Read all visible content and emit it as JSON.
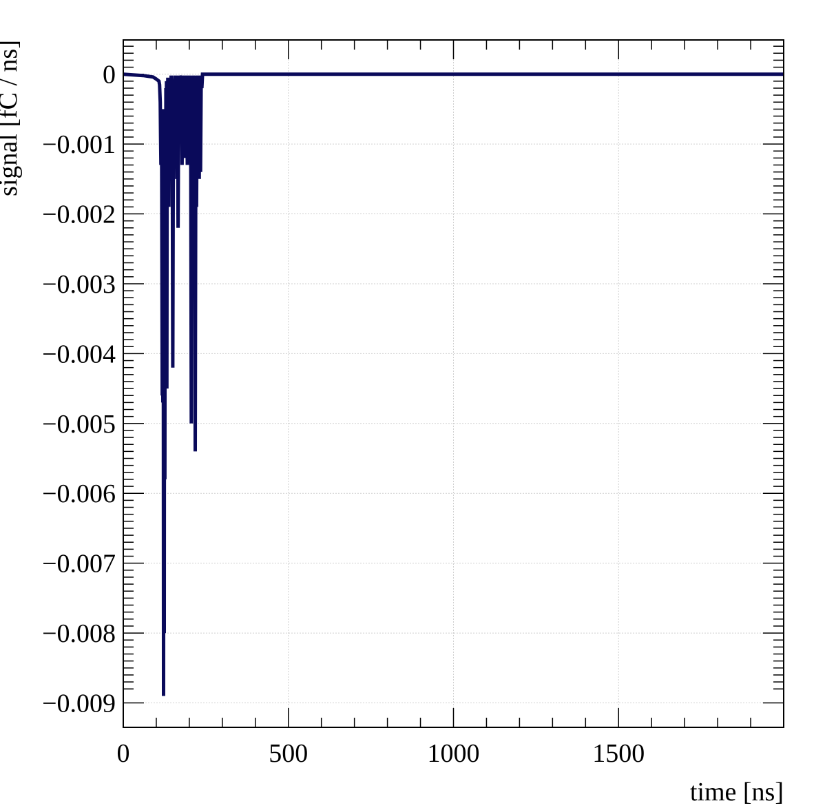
{
  "chart_data": {
    "type": "line",
    "title": "",
    "xlabel": "time [ns]",
    "ylabel": "signal [fC / ns]",
    "xlim": [
      0,
      2000
    ],
    "ylim": [
      -0.00935,
      0.00049
    ],
    "x_ticks": [
      0,
      500,
      1000,
      1500
    ],
    "x_tick_labels": [
      "0",
      "500",
      "1000",
      "1500"
    ],
    "y_ticks": [
      0,
      -0.001,
      -0.002,
      -0.003,
      -0.004,
      -0.005,
      -0.006,
      -0.007,
      -0.008,
      -0.009
    ],
    "y_tick_labels": [
      "0",
      "−0.001",
      "−0.002",
      "−0.003",
      "−0.004",
      "−0.005",
      "−0.006",
      "−0.007",
      "−0.008",
      "−0.009"
    ],
    "grid": true,
    "line_color": "#0a0a5a",
    "series": [
      {
        "x": [
          0,
          60,
          90,
          100,
          108,
          110,
          112,
          113,
          114,
          116,
          118,
          119,
          120,
          121,
          122,
          123,
          124,
          125,
          126,
          127,
          128,
          129,
          130,
          131,
          132,
          133,
          134,
          135,
          136,
          137,
          138,
          139,
          140,
          141,
          142,
          143,
          144,
          145,
          146,
          148,
          150,
          152,
          154,
          156,
          158,
          160,
          162,
          164,
          166,
          168,
          170,
          172,
          174,
          176,
          178,
          180,
          182,
          184,
          186,
          188,
          190,
          192,
          194,
          196,
          198,
          200,
          202,
          204,
          206,
          208,
          210,
          212,
          214,
          216,
          218,
          220,
          222,
          224,
          226,
          228,
          230,
          232,
          234,
          236,
          238,
          240,
          242,
          244,
          246,
          250,
          500,
          1000,
          1500,
          2000
        ],
        "y": [
          0.0,
          -2e-05,
          -4e-05,
          -7e-05,
          -0.0001,
          -0.00015,
          -0.0004,
          -0.0009,
          -0.0013,
          -0.0005,
          -0.0046,
          -0.0005,
          -0.0047,
          -0.0006,
          -0.0089,
          -0.0006,
          -0.008,
          -0.0006,
          -0.0058,
          -0.0006,
          -0.0045,
          -0.0002,
          -0.0012,
          -0.0001,
          -0.0045,
          -0.0002,
          -0.0006,
          -5e-05,
          -0.0003,
          -5e-05,
          -0.0019,
          -0.0001,
          -0.0011,
          -5e-05,
          -0.0006,
          -5e-05,
          -0.0003,
          -2e-05,
          -0.0004,
          -0.0001,
          -0.0042,
          -0.0001,
          -0.0003,
          -2e-05,
          -0.0002,
          -2e-05,
          -0.0015,
          -2e-05,
          -0.0022,
          -2e-05,
          -0.0008,
          -2e-05,
          -0.0001,
          -2e-05,
          -0.0013,
          -2e-05,
          -0.0002,
          -2e-05,
          -0.0012,
          -2e-05,
          -0.0005,
          -2e-05,
          -0.0013,
          -2e-05,
          -0.0002,
          -2e-05,
          -0.0002,
          -2e-05,
          -0.005,
          -2e-05,
          -0.0002,
          -2e-05,
          -0.0003,
          -2e-05,
          -0.0054,
          -2e-05,
          -0.0019,
          -2e-05,
          -0.0006,
          -2e-05,
          -0.0015,
          -2e-05,
          -0.0014,
          -2e-05,
          -0.0002,
          0.0,
          0.0,
          0.0,
          0.0,
          0.0,
          0.0,
          0.0,
          0.0,
          0.0
        ]
      }
    ]
  }
}
